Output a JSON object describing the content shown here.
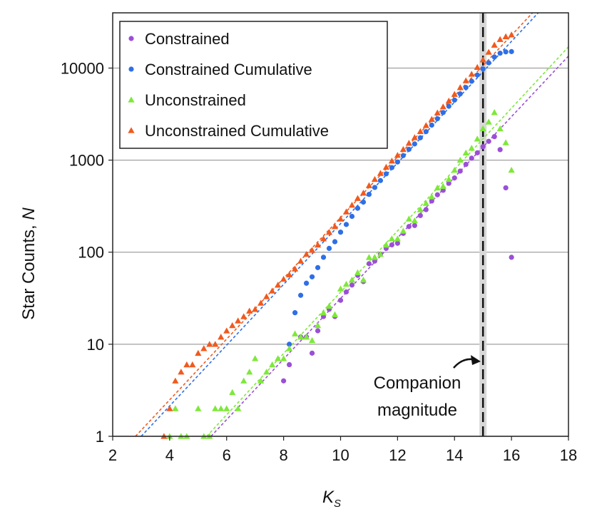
{
  "chart_data": {
    "type": "scatter",
    "xlabel": "K",
    "xlabel_sub": "S",
    "ylabel": "Star Counts, ",
    "ylabel_italic": "N",
    "xlim": [
      2,
      18
    ],
    "ylim_log10": [
      0,
      4.6
    ],
    "xticks": [
      2,
      4,
      6,
      8,
      10,
      12,
      14,
      16,
      18
    ],
    "xtick_labels": [
      "2",
      "4",
      "6",
      "8",
      "10",
      "12",
      "14",
      "16",
      "18"
    ],
    "yticks": [
      1,
      10,
      100,
      1000,
      10000
    ],
    "ytick_labels": [
      "1",
      "10",
      "100",
      "1000",
      "10000"
    ],
    "legend_position": "top-left",
    "colors": {
      "constrained": "#9b4fd6",
      "constrained_cumulative": "#2f6fe6",
      "unconstrained": "#7ee83a",
      "unconstrained_cumulative": "#f05a1e",
      "grid": "#a0a0a0",
      "companion_band": "#d8d8d8",
      "companion_line": "#111111"
    },
    "series": [
      {
        "name": "Constrained",
        "marker": "circle",
        "color_key": "constrained",
        "points": [
          [
            8.0,
            4
          ],
          [
            8.2,
            6
          ],
          [
            8.6,
            12
          ],
          [
            8.8,
            12
          ],
          [
            9.0,
            8
          ],
          [
            9.2,
            14
          ],
          [
            9.4,
            20
          ],
          [
            9.6,
            24
          ],
          [
            9.8,
            20
          ],
          [
            10.0,
            30
          ],
          [
            10.2,
            37
          ],
          [
            10.4,
            44
          ],
          [
            10.6,
            56
          ],
          [
            10.8,
            48
          ],
          [
            11.0,
            75
          ],
          [
            11.2,
            80
          ],
          [
            11.4,
            95
          ],
          [
            11.6,
            110
          ],
          [
            11.8,
            120
          ],
          [
            12.0,
            125
          ],
          [
            12.2,
            160
          ],
          [
            12.4,
            190
          ],
          [
            12.6,
            195
          ],
          [
            12.8,
            250
          ],
          [
            13.0,
            290
          ],
          [
            13.2,
            360
          ],
          [
            13.4,
            420
          ],
          [
            13.6,
            470
          ],
          [
            13.8,
            560
          ],
          [
            14.0,
            640
          ],
          [
            14.2,
            760
          ],
          [
            14.4,
            900
          ],
          [
            14.6,
            1050
          ],
          [
            14.8,
            1200
          ],
          [
            15.0,
            1400
          ],
          [
            15.2,
            1600
          ],
          [
            15.4,
            1800
          ],
          [
            15.6,
            1300
          ],
          [
            15.8,
            500
          ],
          [
            16.0,
            88
          ]
        ]
      },
      {
        "name": "Constrained Cumulative",
        "marker": "circle",
        "color_key": "constrained_cumulative",
        "points": [
          [
            8.2,
            10
          ],
          [
            8.4,
            22
          ],
          [
            8.6,
            34
          ],
          [
            8.8,
            46
          ],
          [
            9.0,
            54
          ],
          [
            9.2,
            68
          ],
          [
            9.4,
            88
          ],
          [
            9.6,
            110
          ],
          [
            9.8,
            130
          ],
          [
            10.0,
            165
          ],
          [
            10.2,
            200
          ],
          [
            10.4,
            245
          ],
          [
            10.6,
            300
          ],
          [
            10.8,
            350
          ],
          [
            11.0,
            425
          ],
          [
            11.2,
            505
          ],
          [
            11.4,
            600
          ],
          [
            11.6,
            710
          ],
          [
            11.8,
            830
          ],
          [
            12.0,
            955
          ],
          [
            12.2,
            1120
          ],
          [
            12.4,
            1310
          ],
          [
            12.6,
            1500
          ],
          [
            12.8,
            1750
          ],
          [
            13.0,
            2040
          ],
          [
            13.2,
            2400
          ],
          [
            13.4,
            2820
          ],
          [
            13.6,
            3290
          ],
          [
            13.8,
            3850
          ],
          [
            14.0,
            4490
          ],
          [
            14.2,
            5250
          ],
          [
            14.4,
            6150
          ],
          [
            14.6,
            7200
          ],
          [
            14.8,
            8400
          ],
          [
            15.0,
            9800
          ],
          [
            15.2,
            11400
          ],
          [
            15.4,
            13200
          ],
          [
            15.6,
            14500
          ],
          [
            15.8,
            15000
          ],
          [
            16.0,
            15100
          ]
        ]
      },
      {
        "name": "Unconstrained",
        "marker": "triangle",
        "color_key": "unconstrained",
        "points": [
          [
            4.0,
            1
          ],
          [
            4.2,
            2
          ],
          [
            4.4,
            1
          ],
          [
            4.6,
            1
          ],
          [
            5.0,
            2
          ],
          [
            5.2,
            1
          ],
          [
            5.4,
            1
          ],
          [
            5.6,
            2
          ],
          [
            5.8,
            2
          ],
          [
            6.0,
            2
          ],
          [
            6.2,
            3
          ],
          [
            6.4,
            2
          ],
          [
            6.6,
            4
          ],
          [
            6.8,
            5
          ],
          [
            7.0,
            7
          ],
          [
            7.2,
            4
          ],
          [
            7.4,
            5
          ],
          [
            7.6,
            6
          ],
          [
            7.8,
            7
          ],
          [
            8.0,
            7
          ],
          [
            8.2,
            9
          ],
          [
            8.4,
            13
          ],
          [
            8.6,
            12
          ],
          [
            8.8,
            12
          ],
          [
            9.0,
            11
          ],
          [
            9.2,
            16
          ],
          [
            9.4,
            22
          ],
          [
            9.6,
            26
          ],
          [
            9.8,
            21
          ],
          [
            10.0,
            40
          ],
          [
            10.2,
            45
          ],
          [
            10.4,
            50
          ],
          [
            10.6,
            60
          ],
          [
            10.8,
            50
          ],
          [
            11.0,
            88
          ],
          [
            11.2,
            88
          ],
          [
            11.4,
            95
          ],
          [
            11.6,
            120
          ],
          [
            11.8,
            140
          ],
          [
            12.0,
            140
          ],
          [
            12.2,
            170
          ],
          [
            12.4,
            230
          ],
          [
            12.6,
            220
          ],
          [
            12.8,
            290
          ],
          [
            13.0,
            340
          ],
          [
            13.2,
            400
          ],
          [
            13.4,
            500
          ],
          [
            13.6,
            520
          ],
          [
            13.8,
            620
          ],
          [
            14.0,
            780
          ],
          [
            14.2,
            1000
          ],
          [
            14.4,
            1200
          ],
          [
            14.6,
            1350
          ],
          [
            14.8,
            1700
          ],
          [
            15.0,
            2200
          ],
          [
            15.2,
            2600
          ],
          [
            15.4,
            3300
          ],
          [
            15.6,
            2200
          ],
          [
            15.8,
            1550
          ],
          [
            16.0,
            780
          ]
        ]
      },
      {
        "name": "Unconstrained Cumulative",
        "marker": "triangle",
        "color_key": "unconstrained_cumulative",
        "points": [
          [
            3.8,
            1
          ],
          [
            4.0,
            2
          ],
          [
            4.2,
            4
          ],
          [
            4.4,
            5
          ],
          [
            4.6,
            6
          ],
          [
            4.8,
            6
          ],
          [
            5.0,
            8
          ],
          [
            5.2,
            9
          ],
          [
            5.4,
            10
          ],
          [
            5.6,
            10
          ],
          [
            5.8,
            12
          ],
          [
            6.0,
            14
          ],
          [
            6.2,
            16
          ],
          [
            6.4,
            18
          ],
          [
            6.6,
            20
          ],
          [
            6.8,
            23
          ],
          [
            7.0,
            24
          ],
          [
            7.2,
            28
          ],
          [
            7.4,
            33
          ],
          [
            7.6,
            38
          ],
          [
            7.8,
            44
          ],
          [
            8.0,
            51
          ],
          [
            8.2,
            57
          ],
          [
            8.4,
            66
          ],
          [
            8.6,
            80
          ],
          [
            8.8,
            95
          ],
          [
            9.0,
            105
          ],
          [
            9.2,
            120
          ],
          [
            9.4,
            140
          ],
          [
            9.6,
            165
          ],
          [
            9.8,
            190
          ],
          [
            10.0,
            230
          ],
          [
            10.2,
            275
          ],
          [
            10.4,
            325
          ],
          [
            10.6,
            385
          ],
          [
            10.8,
            440
          ],
          [
            11.0,
            530
          ],
          [
            11.2,
            620
          ],
          [
            11.4,
            720
          ],
          [
            11.6,
            840
          ],
          [
            11.8,
            980
          ],
          [
            12.0,
            1130
          ],
          [
            12.2,
            1310
          ],
          [
            12.4,
            1530
          ],
          [
            12.6,
            1760
          ],
          [
            12.8,
            2050
          ],
          [
            13.0,
            2380
          ],
          [
            13.2,
            2780
          ],
          [
            13.4,
            3270
          ],
          [
            13.6,
            3800
          ],
          [
            13.8,
            4400
          ],
          [
            14.0,
            5200
          ],
          [
            14.2,
            6150
          ],
          [
            14.4,
            7300
          ],
          [
            14.6,
            8600
          ],
          [
            14.8,
            10200
          ],
          [
            15.0,
            12300
          ],
          [
            15.2,
            14900
          ],
          [
            15.4,
            17800
          ],
          [
            15.6,
            20500
          ],
          [
            15.8,
            22000
          ],
          [
            16.0,
            23000
          ]
        ]
      }
    ],
    "fit_lines": [
      {
        "color_key": "unconstrained_cumulative",
        "from": [
          2.8,
          1
        ],
        "to": [
          16.9,
          45000
        ]
      },
      {
        "color_key": "constrained_cumulative",
        "from": [
          3.0,
          1
        ],
        "to": [
          17.1,
          45000
        ]
      },
      {
        "color_key": "unconstrained",
        "from": [
          5.3,
          1
        ],
        "to": [
          18.0,
          17000
        ]
      },
      {
        "color_key": "constrained",
        "from": [
          5.45,
          1
        ],
        "to": [
          18.0,
          13500
        ]
      }
    ],
    "companion_magnitude_x": 15.0,
    "annotation_line1": "Companion",
    "annotation_line2": "magnitude"
  }
}
